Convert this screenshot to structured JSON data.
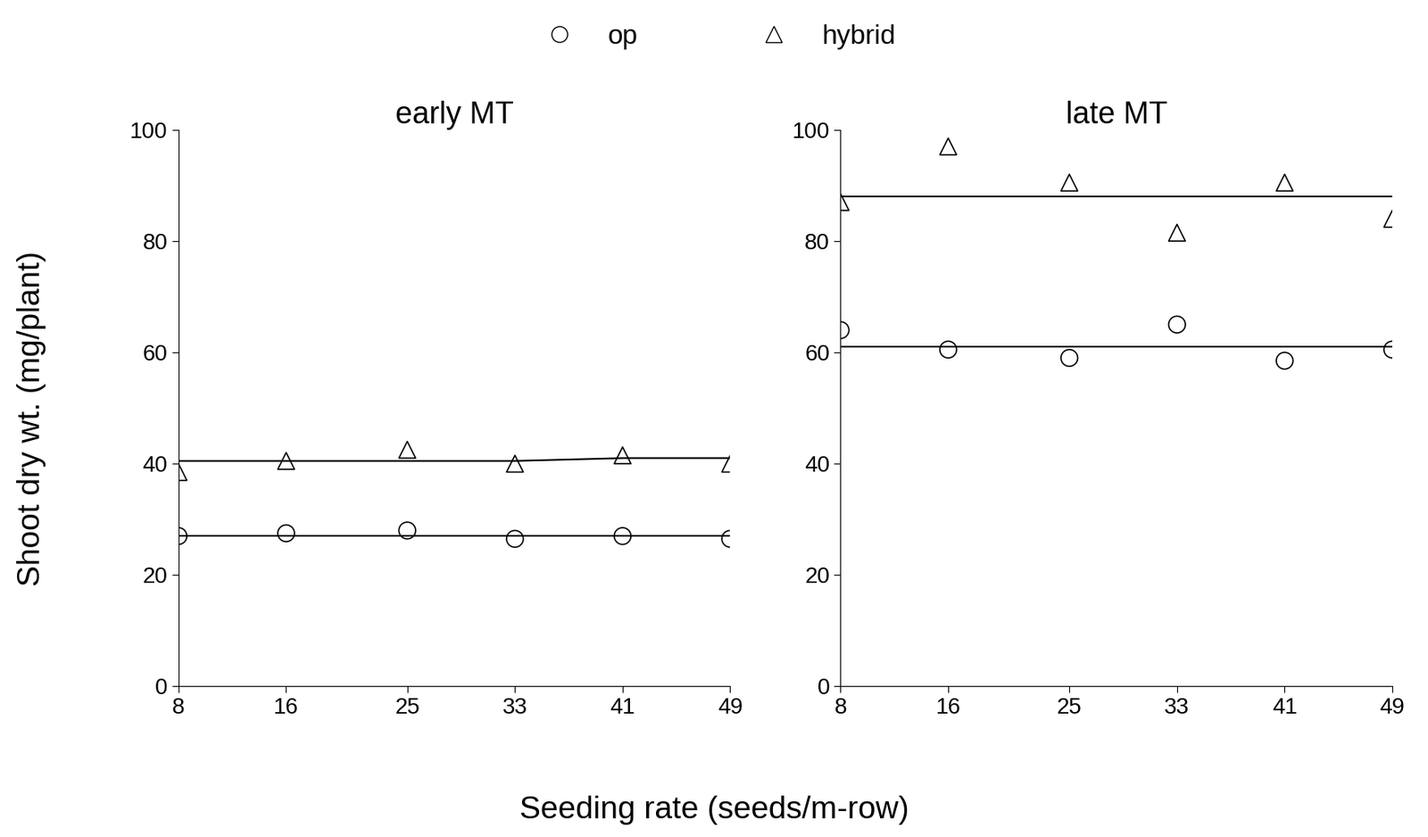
{
  "chart_data": [
    {
      "type": "scatter",
      "title": "early MT",
      "x": [
        8,
        16,
        25,
        33,
        41,
        49
      ],
      "xlim": [
        8,
        49
      ],
      "xticks": [
        8,
        16,
        25,
        33,
        41,
        49
      ],
      "ylim": [
        0,
        100
      ],
      "yticks": [
        0,
        20,
        40,
        60,
        80,
        100
      ],
      "series": [
        {
          "name": "op",
          "color": "#000000",
          "marker": "circle",
          "values": [
            27,
            27.5,
            28,
            26.5,
            27,
            26.5
          ],
          "fit": [
            27,
            27,
            27,
            27,
            27,
            27
          ]
        },
        {
          "name": "hybrid",
          "color": "#000000",
          "marker": "triangle",
          "values": [
            38.5,
            40.5,
            42.5,
            40,
            41.5,
            40
          ],
          "fit": [
            40.5,
            40.5,
            40.5,
            40.5,
            41,
            41
          ]
        }
      ]
    },
    {
      "type": "scatter",
      "title": "late MT",
      "x": [
        8,
        16,
        25,
        33,
        41,
        49
      ],
      "xlim": [
        8,
        49
      ],
      "xticks": [
        8,
        16,
        25,
        33,
        41,
        49
      ],
      "ylim": [
        0,
        100
      ],
      "yticks": [
        0,
        20,
        40,
        60,
        80,
        100
      ],
      "series": [
        {
          "name": "op",
          "color": "#000000",
          "marker": "circle",
          "values": [
            64,
            60.5,
            59,
            65,
            58.5,
            60.5
          ],
          "fit": [
            61,
            61,
            61,
            61,
            61,
            61
          ]
        },
        {
          "name": "hybrid",
          "color": "#000000",
          "marker": "triangle",
          "values": [
            87,
            97,
            90.5,
            81.5,
            90.5,
            84
          ],
          "fit": [
            88,
            88,
            88,
            88,
            88,
            88
          ]
        }
      ]
    }
  ],
  "figure": {
    "x_label": "Seeding rate (seeds/m-row)",
    "y_label": "Shoot dry wt. (mg/plant)",
    "legend": "upper center"
  }
}
